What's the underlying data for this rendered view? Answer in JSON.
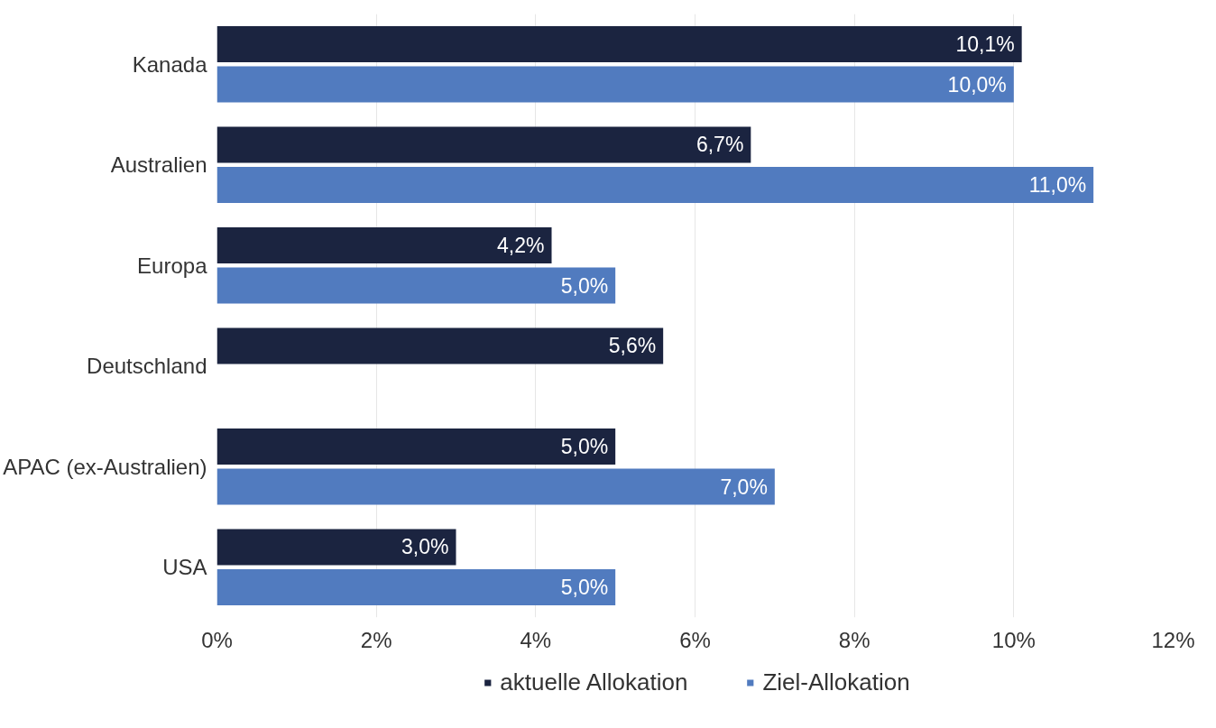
{
  "chart_data": {
    "type": "bar",
    "orientation": "horizontal",
    "categories": [
      "Kanada",
      "Australien",
      "Europa",
      "Deutschland",
      "APAC (ex-Australien)",
      "USA"
    ],
    "series": [
      {
        "name": "aktuelle Allokation",
        "color": "#1b2440",
        "values": [
          10.1,
          6.7,
          4.2,
          5.6,
          5.0,
          3.0
        ],
        "value_labels": [
          "10,1%",
          "6,7%",
          "4,2%",
          "5,6%",
          "5,0%",
          "3,0%"
        ]
      },
      {
        "name": "Ziel-Allokation",
        "color": "#517bbf",
        "values": [
          10.0,
          11.0,
          5.0,
          null,
          7.0,
          5.0
        ],
        "value_labels": [
          "10,0%",
          "11,0%",
          "5,0%",
          null,
          "7,0%",
          "5,0%"
        ]
      }
    ],
    "xlim": [
      0,
      12
    ],
    "xticks": [
      {
        "value": 0,
        "label": "0%"
      },
      {
        "value": 2,
        "label": "2%"
      },
      {
        "value": 4,
        "label": "4%"
      },
      {
        "value": 6,
        "label": "6%"
      },
      {
        "value": 8,
        "label": "8%"
      },
      {
        "value": 10,
        "label": "10%"
      },
      {
        "value": 12,
        "label": "12%"
      }
    ],
    "grid": "x",
    "legend": "bottom"
  }
}
